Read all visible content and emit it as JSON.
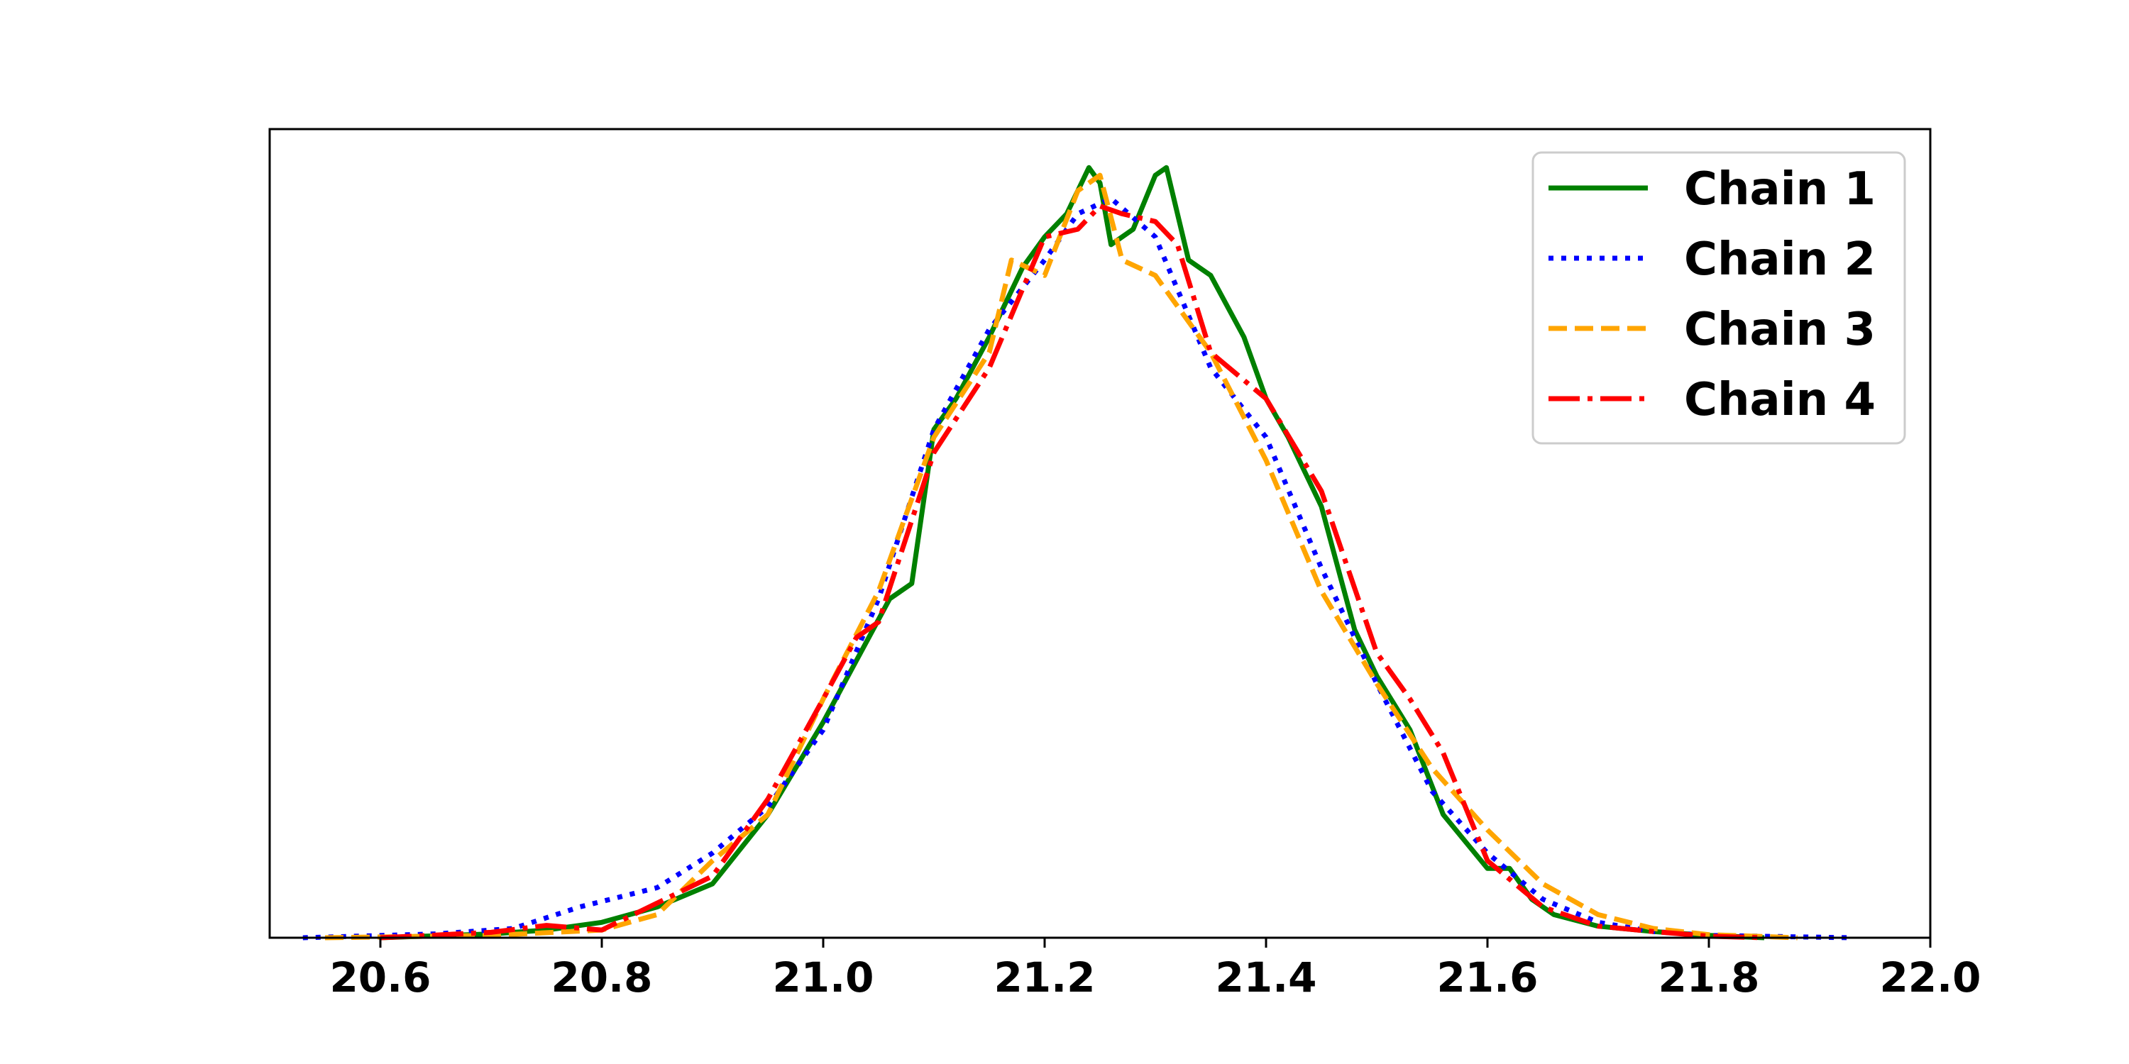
{
  "chart_data": {
    "type": "line",
    "title": "",
    "xlabel": "",
    "ylabel": "",
    "xlim": [
      20.5,
      22.0
    ],
    "ylim": [
      0,
      1.05
    ],
    "x_ticks": [
      "20.6",
      "20.8",
      "21.0",
      "21.2",
      "21.4",
      "21.6",
      "21.8",
      "22.0"
    ],
    "y_ticks_visible": false,
    "grid": false,
    "legend_position": "top-right",
    "series": [
      {
        "name": "Chain 1",
        "color": "#008000",
        "style": "solid",
        "x": [
          20.6,
          20.7,
          20.75,
          20.8,
          20.85,
          20.9,
          20.95,
          21.0,
          21.03,
          21.06,
          21.08,
          21.1,
          21.12,
          21.15,
          21.18,
          21.2,
          21.22,
          21.24,
          21.25,
          21.26,
          21.28,
          21.3,
          21.31,
          21.33,
          21.35,
          21.38,
          21.4,
          21.42,
          21.45,
          21.48,
          21.5,
          21.53,
          21.56,
          21.6,
          21.62,
          21.64,
          21.66,
          21.7,
          21.75,
          21.8,
          21.85
        ],
        "values": [
          0.0,
          0.005,
          0.01,
          0.02,
          0.04,
          0.07,
          0.16,
          0.28,
          0.36,
          0.44,
          0.46,
          0.66,
          0.7,
          0.78,
          0.87,
          0.91,
          0.94,
          1.0,
          0.98,
          0.9,
          0.92,
          0.99,
          1.0,
          0.88,
          0.86,
          0.78,
          0.7,
          0.65,
          0.56,
          0.4,
          0.34,
          0.27,
          0.16,
          0.09,
          0.09,
          0.05,
          0.03,
          0.015,
          0.008,
          0.003,
          0.0
        ]
      },
      {
        "name": "Chain 2",
        "color": "#0000ff",
        "style": "dotted",
        "x": [
          20.53,
          20.65,
          20.72,
          20.78,
          20.85,
          20.9,
          20.95,
          21.0,
          21.05,
          21.1,
          21.15,
          21.2,
          21.23,
          21.26,
          21.3,
          21.35,
          21.4,
          21.45,
          21.5,
          21.55,
          21.6,
          21.65,
          21.7,
          21.75,
          21.8,
          21.93
        ],
        "values": [
          0.0,
          0.005,
          0.012,
          0.04,
          0.065,
          0.11,
          0.17,
          0.27,
          0.44,
          0.66,
          0.79,
          0.88,
          0.94,
          0.96,
          0.91,
          0.74,
          0.65,
          0.48,
          0.33,
          0.19,
          0.11,
          0.05,
          0.02,
          0.008,
          0.003,
          0.0
        ]
      },
      {
        "name": "Chain 3",
        "color": "#ffa500",
        "style": "dashed",
        "x": [
          20.55,
          20.7,
          20.8,
          20.85,
          20.9,
          20.95,
          21.0,
          21.05,
          21.1,
          21.15,
          21.17,
          21.2,
          21.23,
          21.25,
          21.27,
          21.3,
          21.35,
          21.4,
          21.45,
          21.5,
          21.55,
          21.6,
          21.65,
          21.7,
          21.75,
          21.8,
          21.88
        ],
        "values": [
          0.0,
          0.003,
          0.01,
          0.03,
          0.1,
          0.16,
          0.31,
          0.45,
          0.65,
          0.76,
          0.88,
          0.86,
          0.97,
          0.99,
          0.88,
          0.86,
          0.76,
          0.62,
          0.45,
          0.33,
          0.22,
          0.14,
          0.07,
          0.03,
          0.012,
          0.004,
          0.0
        ]
      },
      {
        "name": "Chain 4",
        "color": "#ff0000",
        "style": "dashdot",
        "x": [
          20.6,
          20.7,
          20.75,
          20.8,
          20.85,
          20.9,
          20.95,
          21.0,
          21.03,
          21.05,
          21.1,
          21.15,
          21.2,
          21.23,
          21.25,
          21.27,
          21.3,
          21.32,
          21.35,
          21.4,
          21.45,
          21.5,
          21.53,
          21.56,
          21.6,
          21.65,
          21.7,
          21.75,
          21.8,
          21.85
        ],
        "values": [
          0.0,
          0.007,
          0.016,
          0.01,
          0.045,
          0.08,
          0.18,
          0.31,
          0.39,
          0.41,
          0.63,
          0.74,
          0.91,
          0.92,
          0.95,
          0.94,
          0.93,
          0.9,
          0.76,
          0.7,
          0.58,
          0.37,
          0.31,
          0.24,
          0.1,
          0.04,
          0.015,
          0.008,
          0.002,
          0.0
        ]
      }
    ]
  }
}
